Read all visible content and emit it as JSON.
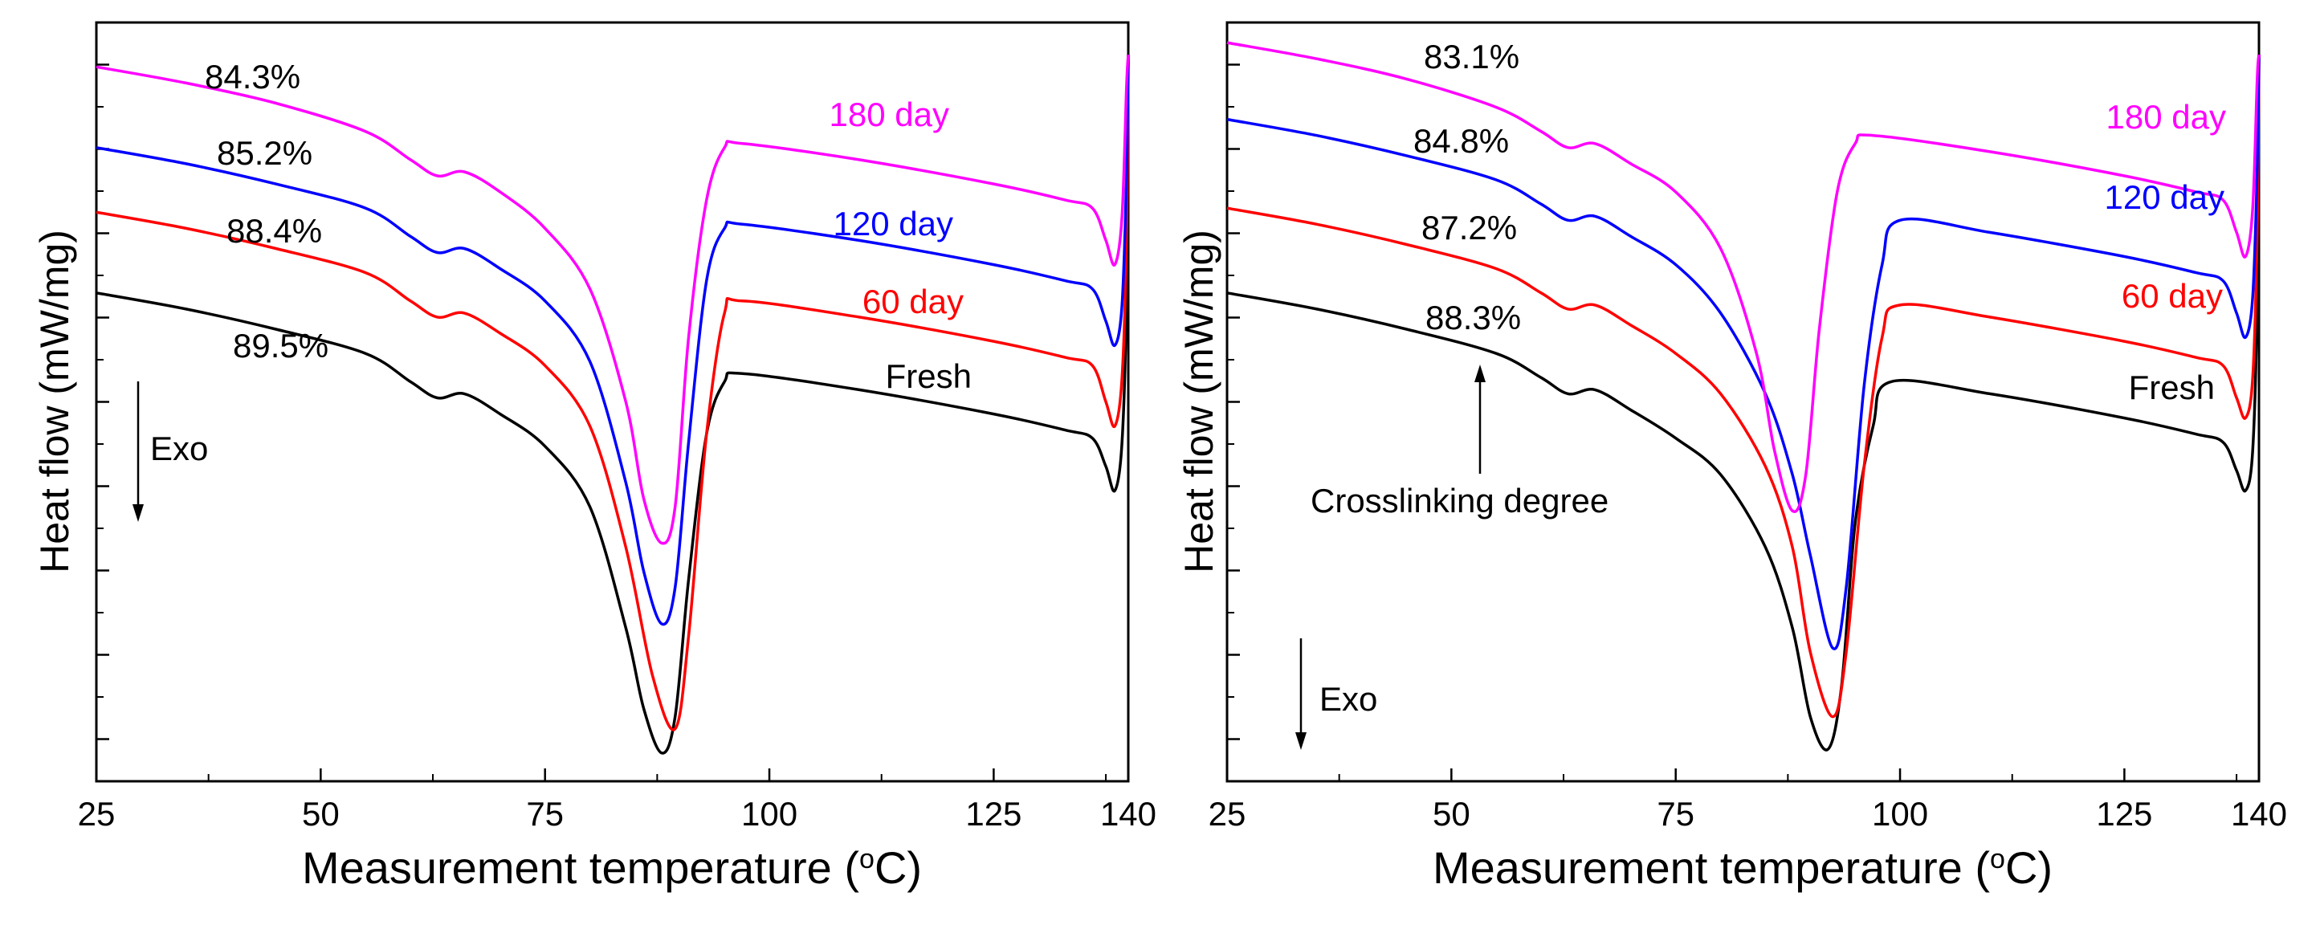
{
  "chart_data": [
    {
      "type": "line",
      "xlabel": "Measurement temperature",
      "xunit": "(°C)",
      "ylabel": "Heat flow (mW/mg)",
      "xlim": [
        25,
        140
      ],
      "x_ticks": [
        "25",
        "50",
        "75",
        "100",
        "125",
        "140"
      ],
      "y_ticks_count": 9,
      "grid": false,
      "legend": "inline labels at right end of curves",
      "exo_label": "Exo",
      "series": [
        {
          "name": "Fresh",
          "color": "#000000",
          "degree": "89.5%",
          "points": [
            [
              25,
              6.05
            ],
            [
              35,
              5.85
            ],
            [
              45,
              5.6
            ],
            [
              55,
              5.3
            ],
            [
              60,
              4.95
            ],
            [
              63,
              4.75
            ],
            [
              66,
              4.8
            ],
            [
              70,
              4.55
            ],
            [
              75,
              4.15
            ],
            [
              80,
              3.4
            ],
            [
              84,
              1.9
            ],
            [
              86,
              0.9
            ],
            [
              88,
              0.35
            ],
            [
              89.5,
              0.8
            ],
            [
              91,
              2.5
            ],
            [
              93,
              4.3
            ],
            [
              95,
              4.95
            ],
            [
              97,
              5.05
            ],
            [
              110,
              4.85
            ],
            [
              125,
              4.55
            ],
            [
              133,
              4.35
            ],
            [
              136,
              4.25
            ],
            [
              137.5,
              3.9
            ],
            [
              138.5,
              3.6
            ],
            [
              139.3,
              4.2
            ],
            [
              139.8,
              6.0
            ],
            [
              140,
              9.0
            ]
          ]
        },
        {
          "name": "60 day",
          "color": "#ff0000",
          "degree": "88.4%",
          "points": [
            [
              25,
              7.05
            ],
            [
              35,
              6.85
            ],
            [
              45,
              6.6
            ],
            [
              55,
              6.3
            ],
            [
              60,
              5.95
            ],
            [
              63,
              5.75
            ],
            [
              66,
              5.8
            ],
            [
              70,
              5.55
            ],
            [
              75,
              5.15
            ],
            [
              80,
              4.4
            ],
            [
              84,
              2.9
            ],
            [
              87,
              1.3
            ],
            [
              89.5,
              0.65
            ],
            [
              91,
              1.8
            ],
            [
              93,
              4.3
            ],
            [
              95,
              5.8
            ],
            [
              97,
              5.95
            ],
            [
              110,
              5.75
            ],
            [
              125,
              5.45
            ],
            [
              133,
              5.25
            ],
            [
              136,
              5.15
            ],
            [
              137.5,
              4.7
            ],
            [
              138.5,
              4.4
            ],
            [
              139.3,
              5.0
            ],
            [
              139.8,
              6.7
            ],
            [
              140,
              9.0
            ]
          ]
        },
        {
          "name": "120 day",
          "color": "#0000ff",
          "degree": "85.2%",
          "points": [
            [
              25,
              7.85
            ],
            [
              35,
              7.65
            ],
            [
              45,
              7.4
            ],
            [
              55,
              7.1
            ],
            [
              60,
              6.75
            ],
            [
              63,
              6.55
            ],
            [
              66,
              6.6
            ],
            [
              70,
              6.35
            ],
            [
              75,
              5.95
            ],
            [
              80,
              5.2
            ],
            [
              84,
              3.7
            ],
            [
              86,
              2.6
            ],
            [
              88,
              1.95
            ],
            [
              89.5,
              2.4
            ],
            [
              91,
              4.2
            ],
            [
              93,
              6.2
            ],
            [
              95,
              6.85
            ],
            [
              97,
              6.9
            ],
            [
              110,
              6.7
            ],
            [
              125,
              6.4
            ],
            [
              133,
              6.2
            ],
            [
              136,
              6.1
            ],
            [
              137.5,
              5.7
            ],
            [
              138.5,
              5.4
            ],
            [
              139.3,
              5.9
            ],
            [
              139.8,
              7.5
            ],
            [
              140,
              9.0
            ]
          ]
        },
        {
          "name": "180 day",
          "color": "#ff00ff",
          "degree": "84.3%",
          "points": [
            [
              25,
              8.85
            ],
            [
              35,
              8.65
            ],
            [
              45,
              8.4
            ],
            [
              55,
              8.05
            ],
            [
              60,
              7.7
            ],
            [
              63,
              7.5
            ],
            [
              66,
              7.55
            ],
            [
              70,
              7.3
            ],
            [
              75,
              6.85
            ],
            [
              80,
              6.1
            ],
            [
              84,
              4.7
            ],
            [
              86,
              3.5
            ],
            [
              88,
              2.95
            ],
            [
              89.5,
              3.4
            ],
            [
              91,
              5.5
            ],
            [
              93,
              7.2
            ],
            [
              95,
              7.85
            ],
            [
              97,
              7.9
            ],
            [
              110,
              7.7
            ],
            [
              125,
              7.4
            ],
            [
              133,
              7.2
            ],
            [
              136,
              7.1
            ],
            [
              137.5,
              6.7
            ],
            [
              138.5,
              6.4
            ],
            [
              139.3,
              7.0
            ],
            [
              139.8,
              8.6
            ],
            [
              140,
              9.0
            ]
          ]
        }
      ]
    },
    {
      "type": "line",
      "xlabel": "Measurement temperature",
      "xunit": "(°C)",
      "ylabel": "Heat flow (mW/mg)",
      "xlim": [
        25,
        140
      ],
      "x_ticks": [
        "25",
        "50",
        "75",
        "100",
        "125",
        "140"
      ],
      "y_ticks_count": 9,
      "grid": false,
      "legend": "inline labels at right end of curves",
      "exo_label": "Exo",
      "annotation": "Crosslinking degree",
      "series": [
        {
          "name": "Fresh",
          "color": "#000000",
          "degree": "88.3%",
          "points": [
            [
              25,
              6.05
            ],
            [
              35,
              5.85
            ],
            [
              45,
              5.6
            ],
            [
              55,
              5.3
            ],
            [
              60,
              5.0
            ],
            [
              63,
              4.8
            ],
            [
              66,
              4.85
            ],
            [
              70,
              4.6
            ],
            [
              75,
              4.25
            ],
            [
              80,
              3.8
            ],
            [
              85,
              2.9
            ],
            [
              88,
              1.9
            ],
            [
              90,
              0.8
            ],
            [
              92,
              0.4
            ],
            [
              93.5,
              1.2
            ],
            [
              95,
              3.2
            ],
            [
              97,
              4.4
            ],
            [
              99,
              4.95
            ],
            [
              110,
              4.8
            ],
            [
              125,
              4.5
            ],
            [
              133,
              4.3
            ],
            [
              136,
              4.2
            ],
            [
              137.5,
              3.85
            ],
            [
              138.5,
              3.6
            ],
            [
              139.3,
              4.1
            ],
            [
              139.8,
              6.0
            ],
            [
              140,
              9.0
            ]
          ]
        },
        {
          "name": "60 day",
          "color": "#ff0000",
          "degree": "87.2%",
          "points": [
            [
              25,
              7.1
            ],
            [
              35,
              6.9
            ],
            [
              45,
              6.65
            ],
            [
              55,
              6.35
            ],
            [
              60,
              6.05
            ],
            [
              63,
              5.85
            ],
            [
              66,
              5.9
            ],
            [
              70,
              5.65
            ],
            [
              75,
              5.3
            ],
            [
              80,
              4.8
            ],
            [
              85,
              3.9
            ],
            [
              88,
              2.9
            ],
            [
              90,
              1.6
            ],
            [
              92.5,
              0.8
            ],
            [
              94,
              1.6
            ],
            [
              96,
              3.9
            ],
            [
              98,
              5.5
            ],
            [
              100,
              5.9
            ],
            [
              110,
              5.75
            ],
            [
              125,
              5.45
            ],
            [
              133,
              5.25
            ],
            [
              136,
              5.15
            ],
            [
              137.5,
              4.75
            ],
            [
              138.5,
              4.5
            ],
            [
              139.3,
              5.0
            ],
            [
              139.8,
              6.8
            ],
            [
              140,
              9.0
            ]
          ]
        },
        {
          "name": "120 day",
          "color": "#0000ff",
          "degree": "84.8%",
          "points": [
            [
              25,
              8.2
            ],
            [
              35,
              8.0
            ],
            [
              45,
              7.75
            ],
            [
              55,
              7.45
            ],
            [
              60,
              7.15
            ],
            [
              63,
              6.95
            ],
            [
              66,
              7.0
            ],
            [
              70,
              6.75
            ],
            [
              75,
              6.4
            ],
            [
              80,
              5.8
            ],
            [
              85,
              4.8
            ],
            [
              88,
              3.8
            ],
            [
              90,
              2.8
            ],
            [
              92.5,
              1.65
            ],
            [
              94,
              2.4
            ],
            [
              96,
              4.9
            ],
            [
              98,
              6.4
            ],
            [
              100,
              6.95
            ],
            [
              110,
              6.8
            ],
            [
              125,
              6.5
            ],
            [
              133,
              6.3
            ],
            [
              136,
              6.2
            ],
            [
              137.5,
              5.8
            ],
            [
              138.5,
              5.5
            ],
            [
              139.3,
              6.0
            ],
            [
              139.8,
              7.6
            ],
            [
              140,
              9.0
            ]
          ]
        },
        {
          "name": "180 day",
          "color": "#ff00ff",
          "degree": "83.1%",
          "points": [
            [
              25,
              9.15
            ],
            [
              35,
              8.95
            ],
            [
              45,
              8.7
            ],
            [
              55,
              8.35
            ],
            [
              60,
              8.05
            ],
            [
              63,
              7.85
            ],
            [
              66,
              7.9
            ],
            [
              70,
              7.65
            ],
            [
              75,
              7.3
            ],
            [
              80,
              6.6
            ],
            [
              84,
              5.3
            ],
            [
              86,
              4.1
            ],
            [
              88,
              3.35
            ],
            [
              89.5,
              3.8
            ],
            [
              91,
              5.6
            ],
            [
              93,
              7.3
            ],
            [
              95,
              7.9
            ],
            [
              97,
              8.0
            ],
            [
              110,
              7.8
            ],
            [
              125,
              7.5
            ],
            [
              133,
              7.3
            ],
            [
              136,
              7.2
            ],
            [
              137.5,
              6.8
            ],
            [
              138.5,
              6.5
            ],
            [
              139.3,
              7.1
            ],
            [
              139.8,
              8.7
            ],
            [
              140,
              9.0
            ]
          ]
        }
      ]
    }
  ]
}
